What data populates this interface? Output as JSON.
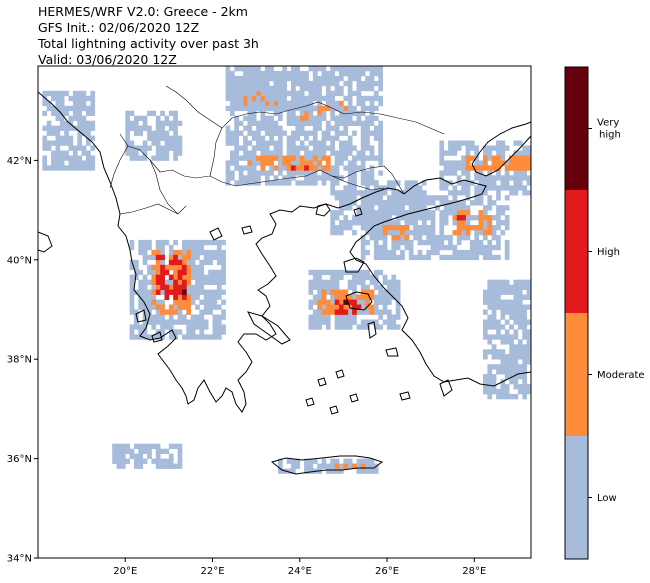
{
  "title": {
    "line1": "HERMES/WRF V2.0: Greece - 2km",
    "line2": "GFS Init.: 02/06/2020 12Z",
    "line3": "Total lightning activity over past 3h",
    "line4": "Valid: 03/06/2020 12Z"
  },
  "map": {
    "lon_range": [
      18,
      29.3
    ],
    "lat_range": [
      34,
      43.9
    ],
    "lat_ticks": [
      "34°N",
      "36°N",
      "38°N",
      "40°N",
      "42°N"
    ],
    "lat_tick_values": [
      34,
      36,
      38,
      40,
      42
    ],
    "lon_ticks": [
      "20°E",
      "22°E",
      "24°E",
      "26°E",
      "28°E"
    ],
    "lon_tick_values": [
      20,
      22,
      24,
      26,
      28
    ]
  },
  "colorbar": {
    "levels": [
      {
        "label": "Low",
        "color": "#a7bbdb"
      },
      {
        "label": "Moderate",
        "color": "#fd8d3c"
      },
      {
        "label": "High",
        "color": "#e31a1c"
      },
      {
        "label": "Very\nhigh",
        "label_line1": "Very",
        "label_line2": "high",
        "color": "#67000d"
      }
    ]
  },
  "chart_data": {
    "type": "heatmap",
    "categories": [
      "Low",
      "Moderate",
      "High",
      "Very high"
    ],
    "colors": [
      "#a7bbdb",
      "#fd8d3c",
      "#e31a1c",
      "#67000d"
    ],
    "xlabel": "",
    "ylabel": "",
    "xlim": [
      18,
      29.3
    ],
    "ylim": [
      34,
      43.9
    ],
    "regions": [
      {
        "level": "Low",
        "lon": [
          18.1,
          19.3
        ],
        "lat": [
          41.8,
          43.4
        ]
      },
      {
        "level": "Low",
        "lon": [
          20.0,
          21.3
        ],
        "lat": [
          42.0,
          43.0
        ]
      },
      {
        "level": "Low",
        "lon": [
          22.3,
          24.4
        ],
        "lat": [
          43.0,
          43.8
        ]
      },
      {
        "level": "Moderate",
        "lon": [
          22.6,
          23.6
        ],
        "lat": [
          43.1,
          43.4
        ]
      },
      {
        "level": "Moderate",
        "lon": [
          24.0,
          25.2
        ],
        "lat": [
          42.7,
          43.2
        ]
      },
      {
        "level": "Low",
        "lon": [
          22.3,
          25.9
        ],
        "lat": [
          41.5,
          43.9
        ]
      },
      {
        "level": "Moderate",
        "lon": [
          22.8,
          24.7
        ],
        "lat": [
          41.8,
          42.1
        ]
      },
      {
        "level": "High",
        "lon": [
          23.7,
          24.2
        ],
        "lat": [
          41.8,
          41.9
        ]
      },
      {
        "level": "Low",
        "lon": [
          27.2,
          29.3
        ],
        "lat": [
          41.3,
          42.4
        ]
      },
      {
        "level": "Moderate",
        "lon": [
          27.8,
          29.3
        ],
        "lat": [
          41.8,
          42.1
        ]
      },
      {
        "level": "Low",
        "lon": [
          24.7,
          26.9
        ],
        "lat": [
          40.5,
          41.6
        ]
      },
      {
        "level": "Low",
        "lon": [
          25.4,
          28.8
        ],
        "lat": [
          40.0,
          41.3
        ]
      },
      {
        "level": "Moderate",
        "lon": [
          25.9,
          26.5
        ],
        "lat": [
          40.4,
          40.7
        ]
      },
      {
        "level": "Moderate",
        "lon": [
          27.5,
          28.4
        ],
        "lat": [
          40.5,
          41.0
        ]
      },
      {
        "level": "High",
        "lon": [
          27.6,
          27.9
        ],
        "lat": [
          40.8,
          41.0
        ]
      },
      {
        "level": "Low",
        "lon": [
          20.1,
          22.3
        ],
        "lat": [
          38.4,
          40.4
        ]
      },
      {
        "level": "Moderate",
        "lon": [
          20.6,
          21.5
        ],
        "lat": [
          38.9,
          40.2
        ]
      },
      {
        "level": "High",
        "lon": [
          20.7,
          21.4
        ],
        "lat": [
          39.2,
          40.1
        ]
      },
      {
        "level": "Very high",
        "lon": [
          21.2,
          21.4
        ],
        "lat": [
          39.3,
          39.4
        ]
      },
      {
        "level": "Low",
        "lon": [
          24.2,
          26.3
        ],
        "lat": [
          38.6,
          39.8
        ]
      },
      {
        "level": "Moderate",
        "lon": [
          24.4,
          25.7
        ],
        "lat": [
          38.9,
          39.4
        ]
      },
      {
        "level": "High",
        "lon": [
          24.8,
          25.4
        ],
        "lat": [
          38.9,
          39.2
        ]
      },
      {
        "level": "Very high",
        "lon": [
          25.0,
          25.3
        ],
        "lat": [
          39.1,
          39.2
        ]
      },
      {
        "level": "Low",
        "lon": [
          19.7,
          21.3
        ],
        "lat": [
          35.8,
          36.3
        ]
      },
      {
        "level": "Low",
        "lon": [
          23.5,
          25.8
        ],
        "lat": [
          35.7,
          36.0
        ]
      },
      {
        "level": "Moderate",
        "lon": [
          24.8,
          25.5
        ],
        "lat": [
          35.8,
          35.9
        ]
      },
      {
        "level": "Very high",
        "lon": [
          25.3,
          25.4
        ],
        "lat": [
          35.9,
          36.0
        ]
      },
      {
        "level": "Low",
        "lon": [
          28.2,
          29.3
        ],
        "lat": [
          37.2,
          39.6
        ]
      }
    ]
  }
}
